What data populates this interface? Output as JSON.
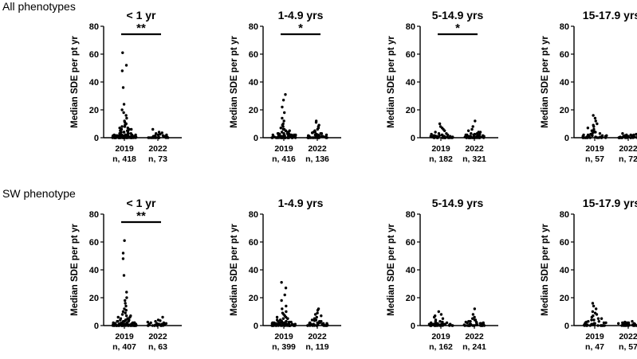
{
  "rows": [
    {
      "label": "All phenotypes"
    },
    {
      "label": "SW phenotype"
    }
  ],
  "chart_data": [
    {
      "type": "scatter",
      "row": 0,
      "title": "< 1 yr",
      "ylabel": "Median SDE per pt yr",
      "ylim": [
        0,
        80
      ],
      "yticks": [
        0,
        20,
        40,
        60,
        80
      ],
      "categories": [
        "2019",
        "2022"
      ],
      "n_labels": [
        "n, 418",
        "n, 73"
      ],
      "significance": "**",
      "series": [
        {
          "values": [
            0,
            0,
            0,
            0,
            0,
            0,
            0,
            0,
            0,
            0,
            0,
            0,
            0,
            0,
            0,
            0,
            0,
            0,
            0,
            0,
            0,
            0,
            0,
            0,
            0,
            0,
            0,
            0,
            0,
            0,
            0.5,
            0.5,
            0.5,
            0.5,
            0.5,
            0.5,
            0.5,
            0.5,
            0.5,
            0.5,
            0.5,
            0.5,
            1,
            1,
            1,
            1,
            1,
            1,
            1,
            1,
            1,
            1,
            1,
            1,
            1.5,
            1.5,
            1.5,
            1.5,
            1.5,
            1.5,
            2,
            2,
            2,
            2,
            2,
            2,
            2,
            2,
            3,
            3,
            3,
            3,
            3,
            3,
            4,
            4,
            4,
            4,
            4,
            5,
            5,
            5,
            6,
            6,
            6,
            7,
            7,
            8,
            8,
            9,
            10,
            11,
            12,
            14,
            16,
            18,
            20,
            24,
            36,
            48,
            52,
            61
          ]
        },
        {
          "values": [
            0,
            0,
            0,
            0,
            0,
            0,
            0,
            0,
            0,
            0,
            0,
            0,
            0.5,
            0.5,
            0.5,
            0.5,
            0.5,
            1,
            1,
            1,
            1,
            1.5,
            1.5,
            2,
            2,
            2.5,
            3,
            3.5,
            4,
            6
          ]
        }
      ]
    },
    {
      "type": "scatter",
      "row": 0,
      "title": "1-4.9 yrs",
      "ylabel": "Median SDE per pt yr",
      "ylim": [
        0,
        80
      ],
      "yticks": [
        0,
        20,
        40,
        60,
        80
      ],
      "categories": [
        "2019",
        "2022"
      ],
      "n_labels": [
        "n, 416",
        "n, 136"
      ],
      "significance": "*",
      "series": [
        {
          "values": [
            0,
            0,
            0,
            0,
            0,
            0,
            0,
            0,
            0,
            0,
            0,
            0,
            0,
            0,
            0,
            0,
            0,
            0,
            0,
            0,
            0,
            0,
            0,
            0,
            0.5,
            0.5,
            0.5,
            0.5,
            0.5,
            0.5,
            0.5,
            0.5,
            0.5,
            0.5,
            1,
            1,
            1,
            1,
            1,
            1,
            1,
            1,
            1,
            1,
            1.5,
            1.5,
            1.5,
            1.5,
            1.5,
            2,
            2,
            2,
            2,
            2,
            2.5,
            2.5,
            3,
            3,
            3,
            3,
            4,
            4,
            4,
            5,
            5,
            5,
            6,
            6,
            7,
            8,
            9,
            10,
            12,
            14,
            18,
            22,
            27,
            31
          ]
        },
        {
          "values": [
            0,
            0,
            0,
            0,
            0,
            0,
            0,
            0,
            0,
            0,
            0,
            0,
            0,
            0,
            0.5,
            0.5,
            0.5,
            0.5,
            0.5,
            0.5,
            1,
            1,
            1,
            1,
            1,
            1,
            1.5,
            1.5,
            1.5,
            2,
            2,
            2,
            2.5,
            3,
            3,
            3.5,
            4,
            4,
            5,
            6,
            7,
            8,
            9,
            11,
            12
          ]
        }
      ]
    },
    {
      "type": "scatter",
      "row": 0,
      "title": "5-14.9 yrs",
      "ylabel": "Median SDE per pt yr",
      "ylim": [
        0,
        80
      ],
      "yticks": [
        0,
        20,
        40,
        60,
        80
      ],
      "categories": [
        "2019",
        "2022"
      ],
      "n_labels": [
        "n, 182",
        "n, 321"
      ],
      "significance": "*",
      "series": [
        {
          "values": [
            0,
            0,
            0,
            0,
            0,
            0,
            0,
            0,
            0,
            0,
            0,
            0,
            0,
            0,
            0,
            0,
            0.5,
            0.5,
            0.5,
            0.5,
            0.5,
            0.5,
            0.5,
            1,
            1,
            1,
            1,
            1,
            1,
            1.5,
            1.5,
            1.5,
            2,
            2,
            2,
            2.5,
            3,
            3,
            4,
            5,
            6,
            7,
            8,
            10
          ]
        },
        {
          "values": [
            0,
            0,
            0,
            0,
            0,
            0,
            0,
            0,
            0,
            0,
            0,
            0,
            0,
            0,
            0,
            0,
            0,
            0,
            0,
            0,
            0.5,
            0.5,
            0.5,
            0.5,
            0.5,
            0.5,
            0.5,
            0.5,
            1,
            1,
            1,
            1,
            1,
            1,
            1,
            1.5,
            1.5,
            1.5,
            1.5,
            2,
            2,
            2,
            2.5,
            2.5,
            3,
            3,
            4,
            4,
            5,
            6,
            8,
            12
          ]
        }
      ]
    },
    {
      "type": "scatter",
      "row": 0,
      "title": "15-17.9 yrs",
      "ylabel": "Median SDE per pt yr",
      "ylim": [
        0,
        80
      ],
      "yticks": [
        0,
        20,
        40,
        60,
        80
      ],
      "categories": [
        "2019",
        "2022"
      ],
      "n_labels": [
        "n, 57",
        "n, 72"
      ],
      "significance": "",
      "series": [
        {
          "values": [
            0,
            0,
            0,
            0,
            0,
            0,
            0,
            0,
            0,
            0,
            0,
            0,
            0.5,
            0.5,
            0.5,
            0.5,
            0.5,
            0.5,
            1,
            1,
            1,
            1,
            1,
            1.5,
            1.5,
            1.5,
            2,
            2,
            2,
            2.5,
            3,
            3,
            4,
            4,
            5,
            5,
            6,
            7,
            8,
            9,
            10,
            12,
            14,
            16
          ]
        },
        {
          "values": [
            0,
            0,
            0,
            0,
            0,
            0,
            0,
            0,
            0,
            0,
            0,
            0,
            0,
            0,
            0.5,
            0.5,
            0.5,
            0.5,
            0.5,
            0.5,
            1,
            1,
            1,
            1,
            1,
            1.5,
            1.5,
            1.5,
            2,
            2,
            2,
            2.5,
            3
          ]
        }
      ]
    },
    {
      "type": "scatter",
      "row": 1,
      "title": "< 1 yr",
      "ylabel": "Median SDE per pt yr",
      "ylim": [
        0,
        80
      ],
      "yticks": [
        0,
        20,
        40,
        60,
        80
      ],
      "categories": [
        "2019",
        "2022"
      ],
      "n_labels": [
        "n, 407",
        "n, 63"
      ],
      "significance": "**",
      "series": [
        {
          "values": [
            0,
            0,
            0,
            0,
            0,
            0,
            0,
            0,
            0,
            0,
            0,
            0,
            0,
            0,
            0,
            0,
            0,
            0,
            0,
            0,
            0,
            0,
            0,
            0,
            0,
            0,
            0,
            0,
            0,
            0.5,
            0.5,
            0.5,
            0.5,
            0.5,
            0.5,
            0.5,
            0.5,
            0.5,
            0.5,
            0.5,
            1,
            1,
            1,
            1,
            1,
            1,
            1,
            1,
            1,
            1,
            1,
            1.5,
            1.5,
            1.5,
            1.5,
            1.5,
            2,
            2,
            2,
            2,
            2,
            2,
            2,
            3,
            3,
            3,
            3,
            3,
            4,
            4,
            4,
            4,
            5,
            5,
            5,
            6,
            6,
            7,
            7,
            8,
            9,
            10,
            11,
            12,
            14,
            16,
            18,
            20,
            24,
            36,
            48,
            52,
            61
          ]
        },
        {
          "values": [
            0,
            0,
            0,
            0,
            0,
            0,
            0,
            0,
            0,
            0,
            0,
            0.5,
            0.5,
            0.5,
            0.5,
            0.5,
            1,
            1,
            1,
            1,
            1.5,
            1.5,
            2,
            2,
            2.5,
            3,
            3.5,
            4,
            6
          ]
        }
      ]
    },
    {
      "type": "scatter",
      "row": 1,
      "title": "1-4.9 yrs",
      "ylabel": "Median SDE per pt yr",
      "ylim": [
        0,
        80
      ],
      "yticks": [
        0,
        20,
        40,
        60,
        80
      ],
      "categories": [
        "2019",
        "2022"
      ],
      "n_labels": [
        "n, 399",
        "n, 119"
      ],
      "significance": "",
      "series": [
        {
          "values": [
            0,
            0,
            0,
            0,
            0,
            0,
            0,
            0,
            0,
            0,
            0,
            0,
            0,
            0,
            0,
            0,
            0,
            0,
            0,
            0,
            0,
            0,
            0,
            0.5,
            0.5,
            0.5,
            0.5,
            0.5,
            0.5,
            0.5,
            0.5,
            0.5,
            1,
            1,
            1,
            1,
            1,
            1,
            1,
            1,
            1,
            1.5,
            1.5,
            1.5,
            1.5,
            1.5,
            2,
            2,
            2,
            2,
            2,
            2.5,
            2.5,
            3,
            3,
            3,
            3,
            4,
            4,
            4,
            5,
            5,
            5,
            6,
            6,
            7,
            8,
            9,
            10,
            12,
            14,
            18,
            22,
            27,
            31
          ]
        },
        {
          "values": [
            0,
            0,
            0,
            0,
            0,
            0,
            0,
            0,
            0,
            0,
            0,
            0,
            0,
            0.5,
            0.5,
            0.5,
            0.5,
            0.5,
            1,
            1,
            1,
            1,
            1,
            1,
            1.5,
            1.5,
            1.5,
            2,
            2,
            2,
            2.5,
            3,
            3,
            3.5,
            4,
            4,
            5,
            6,
            7,
            8,
            9,
            11,
            12
          ]
        }
      ]
    },
    {
      "type": "scatter",
      "row": 1,
      "title": "5-14.9 yrs",
      "ylabel": "Median SDE per pt yr",
      "ylim": [
        0,
        80
      ],
      "yticks": [
        0,
        20,
        40,
        60,
        80
      ],
      "categories": [
        "2019",
        "2022"
      ],
      "n_labels": [
        "n, 162",
        "n, 241"
      ],
      "significance": "",
      "series": [
        {
          "values": [
            0,
            0,
            0,
            0,
            0,
            0,
            0,
            0,
            0,
            0,
            0,
            0,
            0,
            0,
            0,
            0.5,
            0.5,
            0.5,
            0.5,
            0.5,
            0.5,
            1,
            1,
            1,
            1,
            1,
            1,
            1.5,
            1.5,
            1.5,
            2,
            2,
            2,
            2.5,
            3,
            3,
            4,
            5,
            6,
            7,
            8,
            10
          ]
        },
        {
          "values": [
            0,
            0,
            0,
            0,
            0,
            0,
            0,
            0,
            0,
            0,
            0,
            0,
            0,
            0,
            0,
            0,
            0,
            0,
            0.5,
            0.5,
            0.5,
            0.5,
            0.5,
            0.5,
            0.5,
            1,
            1,
            1,
            1,
            1,
            1,
            1.5,
            1.5,
            1.5,
            2,
            2,
            2,
            2.5,
            2.5,
            3,
            3,
            4,
            4,
            5,
            6,
            8,
            12
          ]
        }
      ]
    },
    {
      "type": "scatter",
      "row": 1,
      "title": "15-17.9 yrs",
      "ylabel": "Median SDE per pt yr",
      "ylim": [
        0,
        80
      ],
      "yticks": [
        0,
        20,
        40,
        60,
        80
      ],
      "categories": [
        "2019",
        "2022"
      ],
      "n_labels": [
        "n, 47",
        "n, 57"
      ],
      "significance": "",
      "series": [
        {
          "values": [
            0,
            0,
            0,
            0,
            0,
            0,
            0,
            0,
            0,
            0,
            0,
            0.5,
            0.5,
            0.5,
            0.5,
            0.5,
            1,
            1,
            1,
            1,
            1,
            1.5,
            1.5,
            1.5,
            2,
            2,
            2,
            2.5,
            3,
            3,
            4,
            4,
            5,
            5,
            6,
            7,
            8,
            9,
            10,
            12,
            14,
            16
          ]
        },
        {
          "values": [
            0,
            0,
            0,
            0,
            0,
            0,
            0,
            0,
            0,
            0,
            0,
            0,
            0.5,
            0.5,
            0.5,
            0.5,
            0.5,
            1,
            1,
            1,
            1,
            1,
            1.5,
            1.5,
            1.5,
            2,
            2,
            2,
            2.5,
            3
          ]
        }
      ]
    }
  ]
}
